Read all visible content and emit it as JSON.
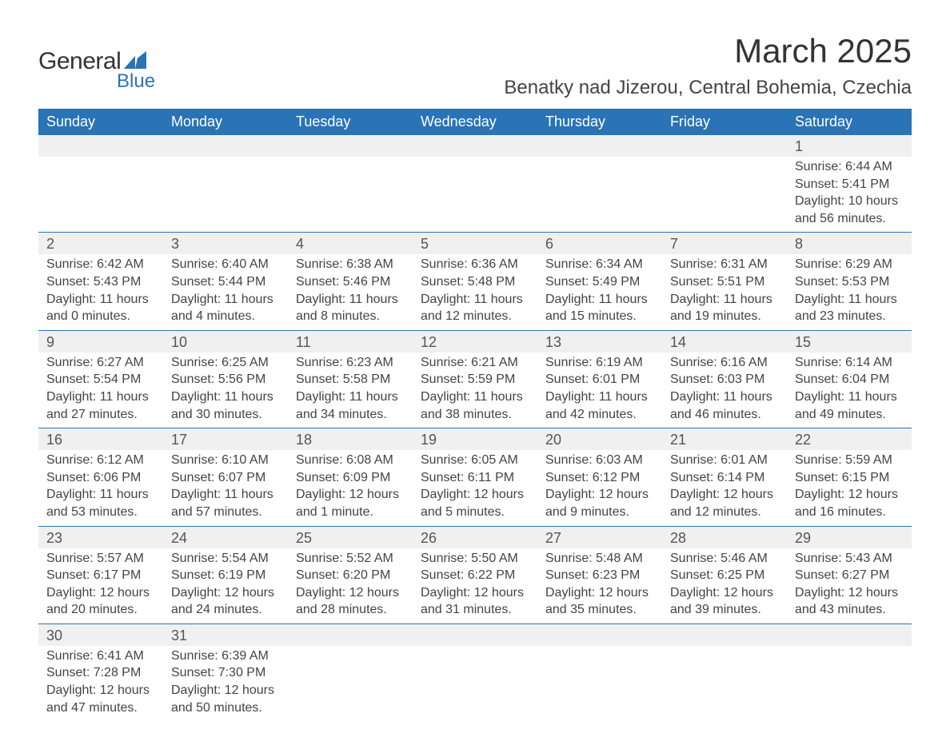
{
  "brand": {
    "word1": "General",
    "word2": "Blue",
    "icon_color": "#2973b6"
  },
  "header": {
    "month_title": "March 2025",
    "location": "Benatky nad Jizerou, Central Bohemia, Czechia"
  },
  "colors": {
    "header_bg": "#2973b6",
    "header_text": "#ffffff",
    "daynum_bg": "#f0f0f0",
    "row_border": "#2973b6",
    "text": "#444444",
    "page_bg": "#ffffff"
  },
  "typography": {
    "title_fontsize": 42,
    "location_fontsize": 24,
    "header_fontsize": 18,
    "daynum_fontsize": 18,
    "body_fontsize": 16
  },
  "calendar": {
    "type": "table",
    "columns": [
      "Sunday",
      "Monday",
      "Tuesday",
      "Wednesday",
      "Thursday",
      "Friday",
      "Saturday"
    ],
    "weeks": [
      [
        null,
        null,
        null,
        null,
        null,
        null,
        {
          "day": "1",
          "sunrise": "Sunrise: 6:44 AM",
          "sunset": "Sunset: 5:41 PM",
          "daylight": "Daylight: 10 hours and 56 minutes."
        }
      ],
      [
        {
          "day": "2",
          "sunrise": "Sunrise: 6:42 AM",
          "sunset": "Sunset: 5:43 PM",
          "daylight": "Daylight: 11 hours and 0 minutes."
        },
        {
          "day": "3",
          "sunrise": "Sunrise: 6:40 AM",
          "sunset": "Sunset: 5:44 PM",
          "daylight": "Daylight: 11 hours and 4 minutes."
        },
        {
          "day": "4",
          "sunrise": "Sunrise: 6:38 AM",
          "sunset": "Sunset: 5:46 PM",
          "daylight": "Daylight: 11 hours and 8 minutes."
        },
        {
          "day": "5",
          "sunrise": "Sunrise: 6:36 AM",
          "sunset": "Sunset: 5:48 PM",
          "daylight": "Daylight: 11 hours and 12 minutes."
        },
        {
          "day": "6",
          "sunrise": "Sunrise: 6:34 AM",
          "sunset": "Sunset: 5:49 PM",
          "daylight": "Daylight: 11 hours and 15 minutes."
        },
        {
          "day": "7",
          "sunrise": "Sunrise: 6:31 AM",
          "sunset": "Sunset: 5:51 PM",
          "daylight": "Daylight: 11 hours and 19 minutes."
        },
        {
          "day": "8",
          "sunrise": "Sunrise: 6:29 AM",
          "sunset": "Sunset: 5:53 PM",
          "daylight": "Daylight: 11 hours and 23 minutes."
        }
      ],
      [
        {
          "day": "9",
          "sunrise": "Sunrise: 6:27 AM",
          "sunset": "Sunset: 5:54 PM",
          "daylight": "Daylight: 11 hours and 27 minutes."
        },
        {
          "day": "10",
          "sunrise": "Sunrise: 6:25 AM",
          "sunset": "Sunset: 5:56 PM",
          "daylight": "Daylight: 11 hours and 30 minutes."
        },
        {
          "day": "11",
          "sunrise": "Sunrise: 6:23 AM",
          "sunset": "Sunset: 5:58 PM",
          "daylight": "Daylight: 11 hours and 34 minutes."
        },
        {
          "day": "12",
          "sunrise": "Sunrise: 6:21 AM",
          "sunset": "Sunset: 5:59 PM",
          "daylight": "Daylight: 11 hours and 38 minutes."
        },
        {
          "day": "13",
          "sunrise": "Sunrise: 6:19 AM",
          "sunset": "Sunset: 6:01 PM",
          "daylight": "Daylight: 11 hours and 42 minutes."
        },
        {
          "day": "14",
          "sunrise": "Sunrise: 6:16 AM",
          "sunset": "Sunset: 6:03 PM",
          "daylight": "Daylight: 11 hours and 46 minutes."
        },
        {
          "day": "15",
          "sunrise": "Sunrise: 6:14 AM",
          "sunset": "Sunset: 6:04 PM",
          "daylight": "Daylight: 11 hours and 49 minutes."
        }
      ],
      [
        {
          "day": "16",
          "sunrise": "Sunrise: 6:12 AM",
          "sunset": "Sunset: 6:06 PM",
          "daylight": "Daylight: 11 hours and 53 minutes."
        },
        {
          "day": "17",
          "sunrise": "Sunrise: 6:10 AM",
          "sunset": "Sunset: 6:07 PM",
          "daylight": "Daylight: 11 hours and 57 minutes."
        },
        {
          "day": "18",
          "sunrise": "Sunrise: 6:08 AM",
          "sunset": "Sunset: 6:09 PM",
          "daylight": "Daylight: 12 hours and 1 minute."
        },
        {
          "day": "19",
          "sunrise": "Sunrise: 6:05 AM",
          "sunset": "Sunset: 6:11 PM",
          "daylight": "Daylight: 12 hours and 5 minutes."
        },
        {
          "day": "20",
          "sunrise": "Sunrise: 6:03 AM",
          "sunset": "Sunset: 6:12 PM",
          "daylight": "Daylight: 12 hours and 9 minutes."
        },
        {
          "day": "21",
          "sunrise": "Sunrise: 6:01 AM",
          "sunset": "Sunset: 6:14 PM",
          "daylight": "Daylight: 12 hours and 12 minutes."
        },
        {
          "day": "22",
          "sunrise": "Sunrise: 5:59 AM",
          "sunset": "Sunset: 6:15 PM",
          "daylight": "Daylight: 12 hours and 16 minutes."
        }
      ],
      [
        {
          "day": "23",
          "sunrise": "Sunrise: 5:57 AM",
          "sunset": "Sunset: 6:17 PM",
          "daylight": "Daylight: 12 hours and 20 minutes."
        },
        {
          "day": "24",
          "sunrise": "Sunrise: 5:54 AM",
          "sunset": "Sunset: 6:19 PM",
          "daylight": "Daylight: 12 hours and 24 minutes."
        },
        {
          "day": "25",
          "sunrise": "Sunrise: 5:52 AM",
          "sunset": "Sunset: 6:20 PM",
          "daylight": "Daylight: 12 hours and 28 minutes."
        },
        {
          "day": "26",
          "sunrise": "Sunrise: 5:50 AM",
          "sunset": "Sunset: 6:22 PM",
          "daylight": "Daylight: 12 hours and 31 minutes."
        },
        {
          "day": "27",
          "sunrise": "Sunrise: 5:48 AM",
          "sunset": "Sunset: 6:23 PM",
          "daylight": "Daylight: 12 hours and 35 minutes."
        },
        {
          "day": "28",
          "sunrise": "Sunrise: 5:46 AM",
          "sunset": "Sunset: 6:25 PM",
          "daylight": "Daylight: 12 hours and 39 minutes."
        },
        {
          "day": "29",
          "sunrise": "Sunrise: 5:43 AM",
          "sunset": "Sunset: 6:27 PM",
          "daylight": "Daylight: 12 hours and 43 minutes."
        }
      ],
      [
        {
          "day": "30",
          "sunrise": "Sunrise: 6:41 AM",
          "sunset": "Sunset: 7:28 PM",
          "daylight": "Daylight: 12 hours and 47 minutes."
        },
        {
          "day": "31",
          "sunrise": "Sunrise: 6:39 AM",
          "sunset": "Sunset: 7:30 PM",
          "daylight": "Daylight: 12 hours and 50 minutes."
        },
        null,
        null,
        null,
        null,
        null
      ]
    ]
  }
}
